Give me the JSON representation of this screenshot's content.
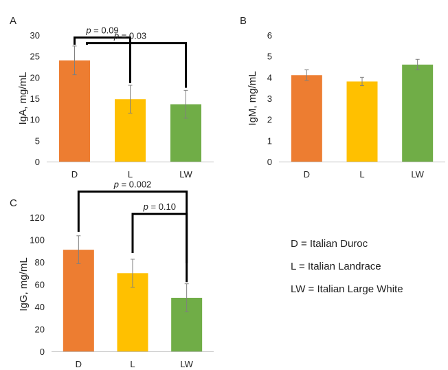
{
  "colors": {
    "D": "#ED7D31",
    "L": "#FFC000",
    "LW": "#70AD47",
    "axis": "#bfbfbf",
    "bracket": "#000000",
    "errorbar": "#7f7f7f"
  },
  "legend": [
    "D = Italian Duroc",
    "L = Italian Landrace",
    "LW = Italian Large White"
  ],
  "chart_data": [
    {
      "panel": "A",
      "type": "bar",
      "categories": [
        "D",
        "L",
        "LW"
      ],
      "values": [
        24.0,
        14.8,
        13.6
      ],
      "errors": [
        3.4,
        3.3,
        3.3
      ],
      "ylabel": "IgA, mg/mL",
      "ylim": [
        0,
        30
      ],
      "yticks": [
        0,
        5,
        10,
        15,
        20,
        25,
        30
      ],
      "grid": false,
      "annotations": [
        {
          "label": "p = 0.09",
          "from": "D",
          "to": "L",
          "level": 29.4,
          "leg_ends": [
            27.7,
            18.6
          ]
        },
        {
          "label": "p = 0.03",
          "from": "D",
          "to": "LW",
          "level": 28.1,
          "leg_ends": [
            27.7,
            17.5
          ]
        }
      ]
    },
    {
      "panel": "B",
      "type": "bar",
      "categories": [
        "D",
        "L",
        "LW"
      ],
      "values": [
        4.1,
        3.8,
        4.6
      ],
      "errors": [
        0.25,
        0.2,
        0.25
      ],
      "ylabel": "IgM, mg/mL",
      "ylim": [
        0,
        6
      ],
      "yticks": [
        0,
        1,
        2,
        3,
        4,
        5,
        6
      ],
      "grid": false,
      "annotations": []
    },
    {
      "panel": "C",
      "type": "bar",
      "categories": [
        "D",
        "L",
        "LW"
      ],
      "values": [
        91,
        70,
        48
      ],
      "errors": [
        12.5,
        12.5,
        12.5
      ],
      "ylabel": "IgG, mg/mL",
      "ylim": [
        0,
        120
      ],
      "yticks": [
        0,
        20,
        40,
        60,
        80,
        100,
        120
      ],
      "grid": false,
      "annotations": [
        {
          "label": "p = 0.002",
          "from": "D",
          "to": "LW",
          "level": 143,
          "leg_ends": [
            107,
            79
          ]
        },
        {
          "label": "p = 0.10",
          "from": "L",
          "to": "LW",
          "level": 123,
          "leg_ends": [
            88,
            62
          ]
        }
      ]
    }
  ]
}
